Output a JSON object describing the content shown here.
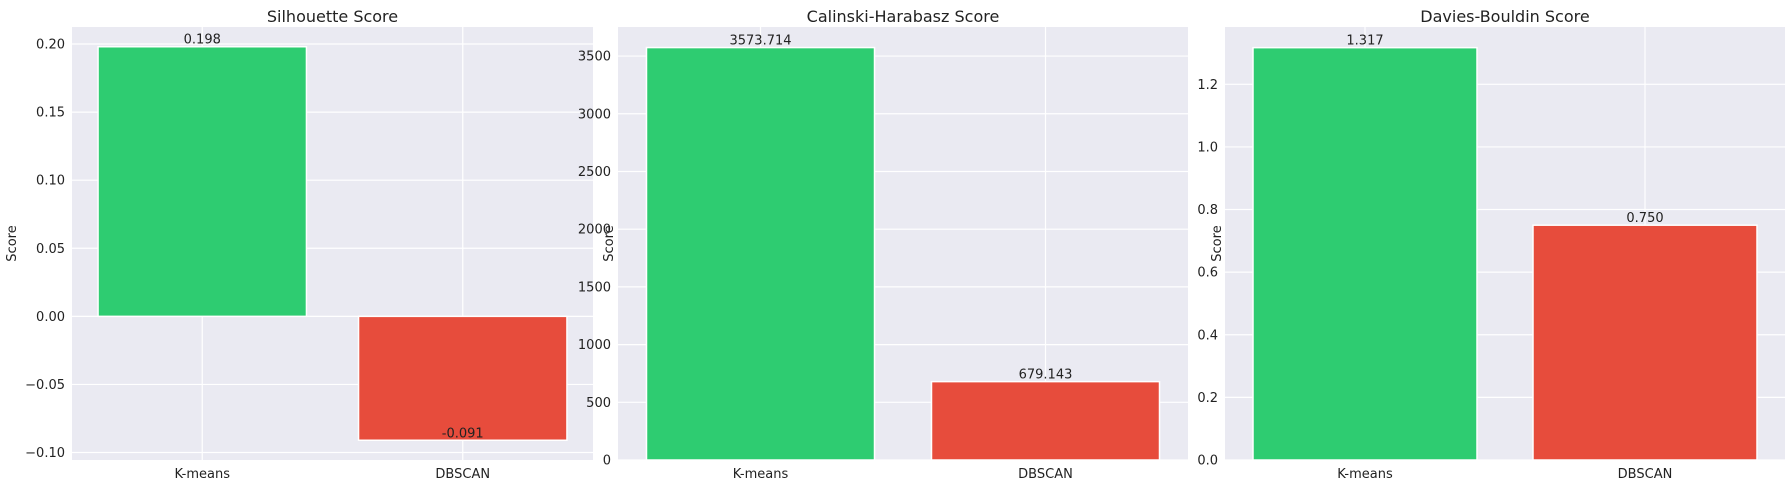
{
  "chart_data": [
    {
      "type": "bar",
      "title": "Silhouette Score",
      "ylabel": "Score",
      "xlabel": "",
      "categories": [
        "K-means",
        "DBSCAN"
      ],
      "values": [
        0.198,
        -0.091
      ],
      "value_labels": [
        "0.198",
        "-0.091"
      ],
      "colors": [
        "#2ecc71",
        "#e74c3c"
      ],
      "ylim": [
        -0.1055,
        0.2125
      ],
      "yticks": [
        -0.1,
        -0.05,
        0.0,
        0.05,
        0.1,
        0.15,
        0.2
      ],
      "ytick_labels": [
        "−0.10",
        "−0.05",
        "0.00",
        "0.05",
        "0.10",
        "0.15",
        "0.20"
      ],
      "grid": true
    },
    {
      "type": "bar",
      "title": "Calinski-Harabasz Score",
      "ylabel": "Score",
      "xlabel": "",
      "categories": [
        "K-means",
        "DBSCAN"
      ],
      "values": [
        3573.714,
        679.143
      ],
      "value_labels": [
        "3573.714",
        "679.143"
      ],
      "colors": [
        "#2ecc71",
        "#e74c3c"
      ],
      "ylim": [
        0,
        3752
      ],
      "yticks": [
        0,
        500,
        1000,
        1500,
        2000,
        2500,
        3000,
        3500
      ],
      "ytick_labels": [
        "0",
        "500",
        "1000",
        "1500",
        "2000",
        "2500",
        "3000",
        "3500"
      ],
      "grid": true
    },
    {
      "type": "bar",
      "title": "Davies-Bouldin Score",
      "ylabel": "Score",
      "xlabel": "",
      "categories": [
        "K-means",
        "DBSCAN"
      ],
      "values": [
        1.317,
        0.75
      ],
      "value_labels": [
        "1.317",
        "0.750"
      ],
      "colors": [
        "#2ecc71",
        "#e74c3c"
      ],
      "ylim": [
        0,
        1.383
      ],
      "yticks": [
        0.0,
        0.2,
        0.4,
        0.6,
        0.8,
        1.0,
        1.2
      ],
      "ytick_labels": [
        "0.0",
        "0.2",
        "0.4",
        "0.6",
        "0.8",
        "1.0",
        "1.2"
      ],
      "grid": true
    }
  ]
}
